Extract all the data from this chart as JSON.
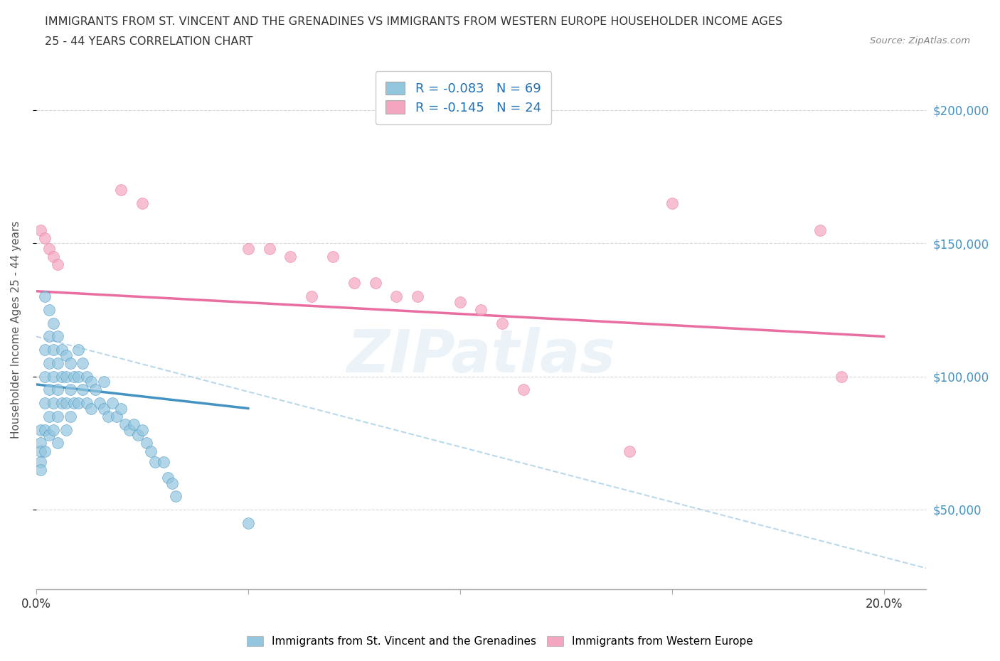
{
  "title_line1": "IMMIGRANTS FROM ST. VINCENT AND THE GRENADINES VS IMMIGRANTS FROM WESTERN EUROPE HOUSEHOLDER INCOME AGES",
  "title_line2": "25 - 44 YEARS CORRELATION CHART",
  "source": "Source: ZipAtlas.com",
  "ylabel": "Householder Income Ages 25 - 44 years",
  "xlim": [
    0.0,
    0.21
  ],
  "ylim": [
    20000,
    215000
  ],
  "yticks": [
    50000,
    100000,
    150000,
    200000
  ],
  "ytick_labels": [
    "$50,000",
    "$100,000",
    "$150,000",
    "$200,000"
  ],
  "xtick_positions": [
    0.0,
    0.05,
    0.1,
    0.15,
    0.2
  ],
  "xtick_labels_show": [
    "0.0%",
    "",
    "",
    "",
    "20.0%"
  ],
  "blue_scatter_x": [
    0.001,
    0.001,
    0.001,
    0.001,
    0.001,
    0.002,
    0.002,
    0.002,
    0.002,
    0.002,
    0.002,
    0.003,
    0.003,
    0.003,
    0.003,
    0.003,
    0.003,
    0.004,
    0.004,
    0.004,
    0.004,
    0.004,
    0.005,
    0.005,
    0.005,
    0.005,
    0.005,
    0.006,
    0.006,
    0.006,
    0.007,
    0.007,
    0.007,
    0.007,
    0.008,
    0.008,
    0.008,
    0.009,
    0.009,
    0.01,
    0.01,
    0.01,
    0.011,
    0.011,
    0.012,
    0.012,
    0.013,
    0.013,
    0.014,
    0.015,
    0.016,
    0.016,
    0.017,
    0.018,
    0.019,
    0.02,
    0.021,
    0.022,
    0.023,
    0.024,
    0.025,
    0.026,
    0.027,
    0.028,
    0.03,
    0.031,
    0.032,
    0.033,
    0.05
  ],
  "blue_scatter_y": [
    80000,
    75000,
    72000,
    68000,
    65000,
    130000,
    110000,
    100000,
    90000,
    80000,
    72000,
    125000,
    115000,
    105000,
    95000,
    85000,
    78000,
    120000,
    110000,
    100000,
    90000,
    80000,
    115000,
    105000,
    95000,
    85000,
    75000,
    110000,
    100000,
    90000,
    108000,
    100000,
    90000,
    80000,
    105000,
    95000,
    85000,
    100000,
    90000,
    110000,
    100000,
    90000,
    105000,
    95000,
    100000,
    90000,
    98000,
    88000,
    95000,
    90000,
    98000,
    88000,
    85000,
    90000,
    85000,
    88000,
    82000,
    80000,
    82000,
    78000,
    80000,
    75000,
    72000,
    68000,
    68000,
    62000,
    60000,
    55000,
    45000
  ],
  "pink_scatter_x": [
    0.001,
    0.002,
    0.003,
    0.004,
    0.005,
    0.02,
    0.025,
    0.05,
    0.055,
    0.06,
    0.065,
    0.07,
    0.075,
    0.08,
    0.085,
    0.09,
    0.1,
    0.105,
    0.11,
    0.115,
    0.14,
    0.15,
    0.185,
    0.19
  ],
  "pink_scatter_y": [
    155000,
    152000,
    148000,
    145000,
    142000,
    170000,
    165000,
    148000,
    148000,
    145000,
    130000,
    145000,
    135000,
    135000,
    130000,
    130000,
    128000,
    125000,
    120000,
    95000,
    72000,
    165000,
    155000,
    100000
  ],
  "blue_line_x": [
    0.0,
    0.05
  ],
  "blue_line_y": [
    97000,
    88000
  ],
  "pink_line_x": [
    0.0,
    0.2
  ],
  "pink_line_y": [
    132000,
    115000
  ],
  "blue_dot_color": "#92c5de",
  "pink_dot_color": "#f4a6c0",
  "blue_line_color": "#4393c3",
  "pink_line_color": "#e86da0",
  "dashed_line_color": "#b3d4e8",
  "dashed_line_x": [
    0.0,
    0.21
  ],
  "dashed_line_y": [
    115000,
    28000
  ],
  "R_blue": "-0.083",
  "N_blue": "69",
  "R_pink": "-0.145",
  "N_pink": "24",
  "legend_label_blue": "Immigrants from St. Vincent and the Grenadines",
  "legend_label_pink": "Immigrants from Western Europe",
  "watermark": "ZIPatlas",
  "background_color": "#ffffff",
  "grid_color": "#cccccc"
}
